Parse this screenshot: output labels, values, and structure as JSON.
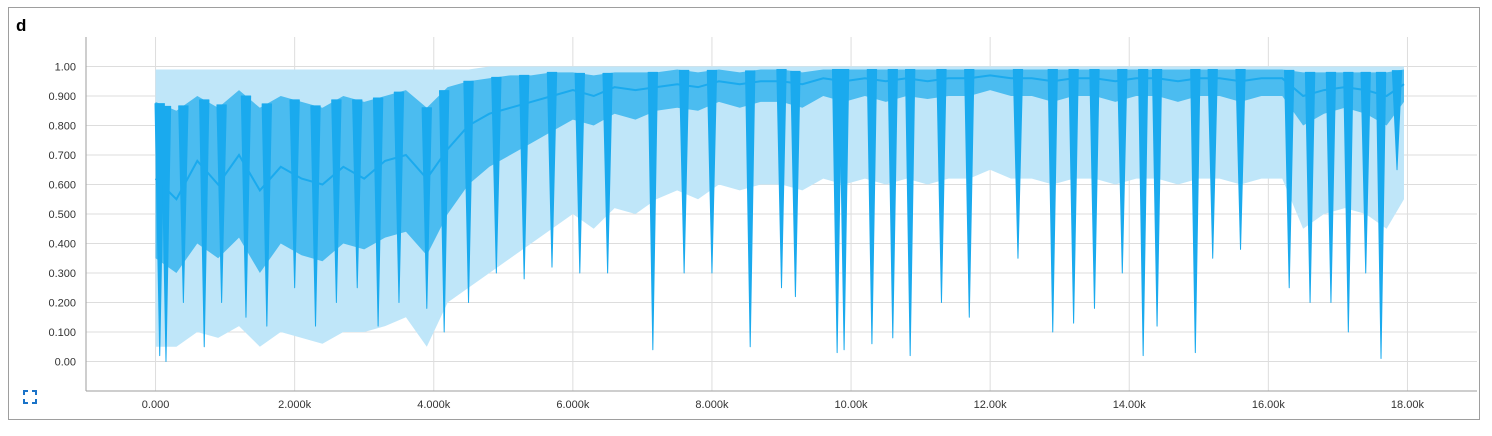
{
  "panel": {
    "title": "d",
    "expand_icon": "fit-to-data-icon"
  },
  "colors": {
    "series_main": "#1aaaee",
    "band_inner": "#4bbcf0",
    "band_outer": "#bfe6f9",
    "gridline": "#dddddd",
    "axis": "#9e9e9e"
  },
  "chart_data": {
    "type": "area",
    "title": "d",
    "xlabel": "",
    "ylabel": "",
    "xlim": [
      -1000,
      19000
    ],
    "ylim": [
      -0.1,
      1.1
    ],
    "x_ticks": [
      0,
      2000,
      4000,
      6000,
      8000,
      10000,
      12000,
      14000,
      16000,
      18000
    ],
    "x_tick_labels": [
      "0.000",
      "2.000k",
      "4.000k",
      "6.000k",
      "8.000k",
      "10.00k",
      "12.00k",
      "14.00k",
      "16.00k",
      "18.00k"
    ],
    "y_ticks": [
      0.0,
      0.1,
      0.2,
      0.3,
      0.4,
      0.5,
      0.6,
      0.7,
      0.8,
      0.9,
      1.0
    ],
    "y_tick_labels": [
      "0.00",
      "0.100",
      "0.200",
      "0.300",
      "0.400",
      "0.500",
      "0.600",
      "0.700",
      "0.800",
      "0.900",
      "1.00"
    ],
    "grid": true,
    "series": [
      {
        "x": [
          0,
          300,
          600,
          900,
          1200,
          1500,
          1800,
          2100,
          2400,
          2700,
          3000,
          3300,
          3600,
          3900,
          4200,
          4500,
          4800,
          5100,
          5400,
          5700,
          6000,
          6300,
          6600,
          6900,
          7200,
          7500,
          7800,
          8100,
          8400,
          8700,
          9000,
          9300,
          9600,
          9900,
          10200,
          10500,
          10800,
          11100,
          11400,
          11700,
          12000,
          12300,
          12600,
          12900,
          13200,
          13500,
          13800,
          14100,
          14400,
          14700,
          15000,
          15300,
          15600,
          15900,
          16200,
          16500,
          16800,
          17100,
          17400,
          17700,
          17950
        ],
        "median": [
          0.62,
          0.55,
          0.68,
          0.6,
          0.7,
          0.58,
          0.66,
          0.62,
          0.6,
          0.66,
          0.62,
          0.68,
          0.7,
          0.62,
          0.72,
          0.8,
          0.84,
          0.86,
          0.88,
          0.9,
          0.92,
          0.9,
          0.93,
          0.92,
          0.93,
          0.94,
          0.93,
          0.95,
          0.94,
          0.95,
          0.95,
          0.94,
          0.96,
          0.95,
          0.96,
          0.95,
          0.96,
          0.95,
          0.96,
          0.96,
          0.97,
          0.96,
          0.96,
          0.95,
          0.96,
          0.96,
          0.95,
          0.96,
          0.96,
          0.95,
          0.96,
          0.96,
          0.95,
          0.96,
          0.96,
          0.9,
          0.92,
          0.93,
          0.92,
          0.9,
          0.94
        ],
        "inner_low": [
          0.35,
          0.3,
          0.4,
          0.35,
          0.42,
          0.3,
          0.4,
          0.36,
          0.34,
          0.4,
          0.38,
          0.42,
          0.44,
          0.36,
          0.5,
          0.6,
          0.66,
          0.7,
          0.74,
          0.78,
          0.82,
          0.8,
          0.84,
          0.82,
          0.85,
          0.86,
          0.85,
          0.88,
          0.86,
          0.88,
          0.88,
          0.86,
          0.9,
          0.88,
          0.9,
          0.88,
          0.9,
          0.89,
          0.9,
          0.9,
          0.92,
          0.9,
          0.9,
          0.88,
          0.9,
          0.9,
          0.88,
          0.9,
          0.9,
          0.88,
          0.9,
          0.9,
          0.88,
          0.9,
          0.9,
          0.8,
          0.84,
          0.86,
          0.84,
          0.8,
          0.88
        ],
        "inner_high": [
          0.88,
          0.85,
          0.9,
          0.86,
          0.92,
          0.86,
          0.9,
          0.88,
          0.86,
          0.9,
          0.88,
          0.9,
          0.92,
          0.86,
          0.93,
          0.95,
          0.96,
          0.97,
          0.97,
          0.98,
          0.98,
          0.97,
          0.98,
          0.98,
          0.98,
          0.99,
          0.98,
          0.99,
          0.98,
          0.99,
          0.99,
          0.98,
          0.99,
          0.99,
          0.99,
          0.99,
          0.99,
          0.99,
          0.99,
          0.99,
          0.99,
          0.99,
          0.99,
          0.99,
          0.99,
          0.99,
          0.99,
          0.99,
          0.99,
          0.99,
          0.99,
          0.99,
          0.99,
          0.99,
          0.99,
          0.98,
          0.98,
          0.98,
          0.98,
          0.98,
          0.99
        ],
        "outer_low": [
          0.05,
          0.05,
          0.1,
          0.08,
          0.12,
          0.05,
          0.1,
          0.08,
          0.06,
          0.1,
          0.1,
          0.12,
          0.15,
          0.05,
          0.2,
          0.25,
          0.3,
          0.35,
          0.4,
          0.45,
          0.5,
          0.45,
          0.52,
          0.5,
          0.55,
          0.58,
          0.55,
          0.6,
          0.58,
          0.6,
          0.6,
          0.58,
          0.62,
          0.6,
          0.62,
          0.6,
          0.62,
          0.6,
          0.62,
          0.62,
          0.65,
          0.62,
          0.62,
          0.6,
          0.62,
          0.62,
          0.6,
          0.62,
          0.62,
          0.6,
          0.62,
          0.62,
          0.6,
          0.62,
          0.62,
          0.45,
          0.5,
          0.52,
          0.5,
          0.45,
          0.55
        ],
        "outer_high": [
          0.99,
          0.99,
          0.99,
          0.99,
          0.99,
          0.99,
          0.99,
          0.99,
          0.99,
          0.99,
          0.99,
          0.99,
          0.99,
          0.99,
          0.99,
          0.99,
          1.0,
          1.0,
          1.0,
          1.0,
          1.0,
          1.0,
          1.0,
          1.0,
          1.0,
          1.0,
          1.0,
          1.0,
          1.0,
          1.0,
          1.0,
          1.0,
          1.0,
          1.0,
          1.0,
          1.0,
          1.0,
          1.0,
          1.0,
          1.0,
          1.0,
          1.0,
          1.0,
          1.0,
          1.0,
          1.0,
          1.0,
          1.0,
          1.0,
          1.0,
          1.0,
          1.0,
          1.0,
          1.0,
          1.0,
          1.0,
          1.0,
          1.0,
          1.0,
          1.0,
          1.0
        ]
      }
    ],
    "dips": [
      {
        "x": 60,
        "y": 0.02
      },
      {
        "x": 150,
        "y": 0.0
      },
      {
        "x": 400,
        "y": 0.2
      },
      {
        "x": 700,
        "y": 0.05
      },
      {
        "x": 950,
        "y": 0.2
      },
      {
        "x": 1300,
        "y": 0.15
      },
      {
        "x": 1600,
        "y": 0.12
      },
      {
        "x": 2000,
        "y": 0.25
      },
      {
        "x": 2300,
        "y": 0.12
      },
      {
        "x": 2600,
        "y": 0.2
      },
      {
        "x": 2900,
        "y": 0.25
      },
      {
        "x": 3200,
        "y": 0.12
      },
      {
        "x": 3500,
        "y": 0.2
      },
      {
        "x": 3900,
        "y": 0.18
      },
      {
        "x": 4150,
        "y": 0.1
      },
      {
        "x": 4500,
        "y": 0.2
      },
      {
        "x": 4900,
        "y": 0.3
      },
      {
        "x": 5300,
        "y": 0.28
      },
      {
        "x": 5700,
        "y": 0.32
      },
      {
        "x": 6100,
        "y": 0.3
      },
      {
        "x": 6500,
        "y": 0.3
      },
      {
        "x": 7150,
        "y": 0.04
      },
      {
        "x": 7600,
        "y": 0.3
      },
      {
        "x": 8000,
        "y": 0.3
      },
      {
        "x": 8550,
        "y": 0.05
      },
      {
        "x": 9000,
        "y": 0.25
      },
      {
        "x": 9200,
        "y": 0.22
      },
      {
        "x": 9800,
        "y": 0.03
      },
      {
        "x": 9900,
        "y": 0.04
      },
      {
        "x": 10300,
        "y": 0.06
      },
      {
        "x": 10600,
        "y": 0.08
      },
      {
        "x": 10850,
        "y": 0.02
      },
      {
        "x": 11300,
        "y": 0.2
      },
      {
        "x": 11700,
        "y": 0.15
      },
      {
        "x": 12400,
        "y": 0.35
      },
      {
        "x": 12900,
        "y": 0.1
      },
      {
        "x": 13200,
        "y": 0.13
      },
      {
        "x": 13500,
        "y": 0.18
      },
      {
        "x": 13900,
        "y": 0.3
      },
      {
        "x": 14200,
        "y": 0.02
      },
      {
        "x": 14400,
        "y": 0.12
      },
      {
        "x": 14950,
        "y": 0.03
      },
      {
        "x": 15200,
        "y": 0.35
      },
      {
        "x": 15600,
        "y": 0.38
      },
      {
        "x": 16300,
        "y": 0.25
      },
      {
        "x": 16600,
        "y": 0.2
      },
      {
        "x": 16900,
        "y": 0.2
      },
      {
        "x": 17150,
        "y": 0.1
      },
      {
        "x": 17400,
        "y": 0.3
      },
      {
        "x": 17620,
        "y": 0.01
      },
      {
        "x": 17850,
        "y": 0.65
      }
    ]
  }
}
